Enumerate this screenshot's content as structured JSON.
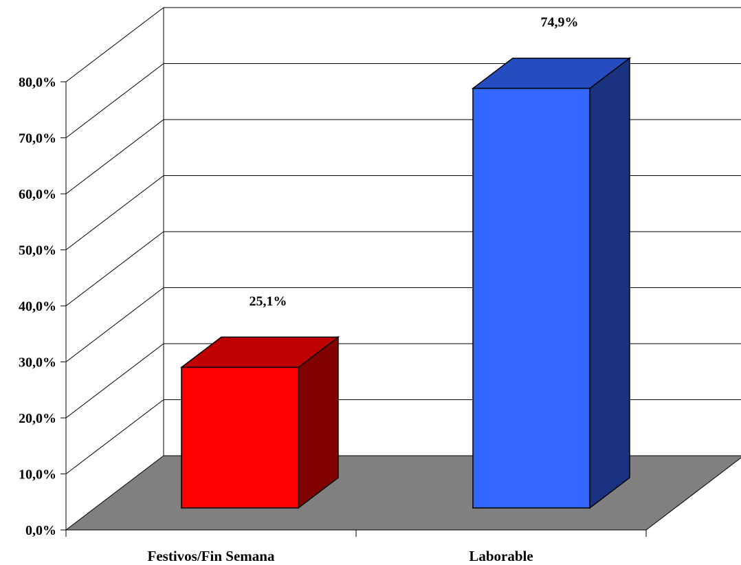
{
  "chart_data": {
    "type": "bar",
    "style": "3d",
    "categories": [
      "Festivos/Fin Semana",
      "Laborable"
    ],
    "values": [
      25.1,
      74.9
    ],
    "value_labels": [
      "25,1%",
      "74,9%"
    ],
    "ylim": [
      0,
      80
    ],
    "yticks": [
      0,
      10,
      20,
      30,
      40,
      50,
      60,
      70,
      80
    ],
    "ytick_labels": [
      "0,0%",
      "10,0%",
      "20,0%",
      "30,0%",
      "40,0%",
      "50,0%",
      "60,0%",
      "70,0%",
      "80,0%"
    ],
    "grid": true,
    "colors": {
      "bars": [
        "#ff0000",
        "#3366ff"
      ],
      "bar_tops": [
        "#bf0000",
        "#264dbf"
      ],
      "bar_sides": [
        "#800000",
        "#1a3380"
      ],
      "floor": "#808080",
      "background": "#ffffff"
    }
  }
}
